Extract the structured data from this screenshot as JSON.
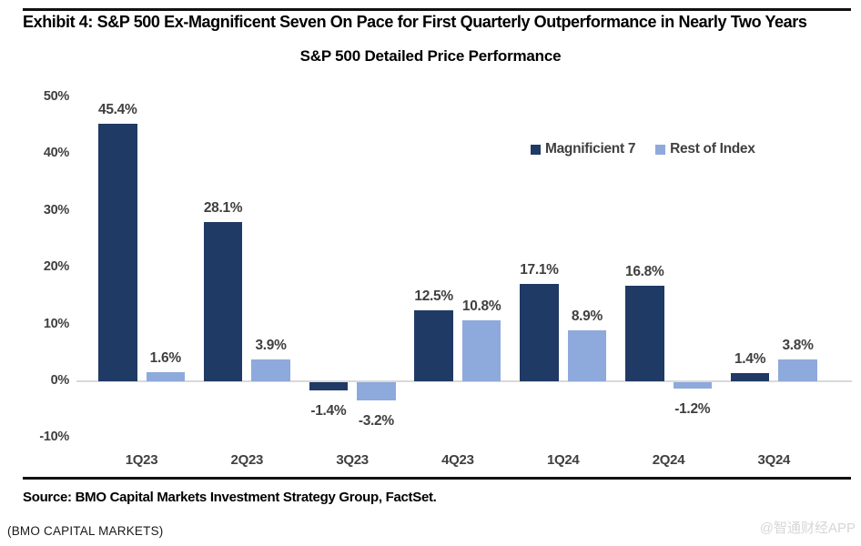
{
  "page": {
    "exhibit_title": "Exhibit 4: S&P 500 Ex-Magnificent Seven On Pace for First Quarterly Outperformance in Nearly Two Years",
    "source_note": "Source: BMO Capital Markets Investment Strategy Group, FactSet.",
    "footer_left": "(BMO CAPITAL MARKETS)",
    "watermark": "@智通财经APP"
  },
  "chart_data": {
    "type": "bar",
    "title": "S&P 500 Detailed Price Performance",
    "categories": [
      "1Q23",
      "2Q23",
      "3Q23",
      "4Q23",
      "1Q24",
      "2Q24",
      "3Q24"
    ],
    "series": [
      {
        "name": "Magnificient 7",
        "color": "#1f3a64",
        "values": [
          45.4,
          28.1,
          -1.4,
          12.5,
          17.1,
          16.8,
          1.4
        ]
      },
      {
        "name": "Rest of Index",
        "color": "#8ea9db",
        "values": [
          1.6,
          3.9,
          -3.2,
          10.8,
          8.9,
          -1.2,
          3.8
        ]
      }
    ],
    "y_ticks": [
      50,
      40,
      30,
      20,
      10,
      0,
      -10
    ],
    "y_tick_suffix": "%",
    "ylim": [
      -10,
      50
    ],
    "grid": false,
    "legend_position": "upper-right",
    "value_label_format": "one_decimal_percent",
    "axis_line_color": "#d9d9d9",
    "label_color": "#404040"
  }
}
